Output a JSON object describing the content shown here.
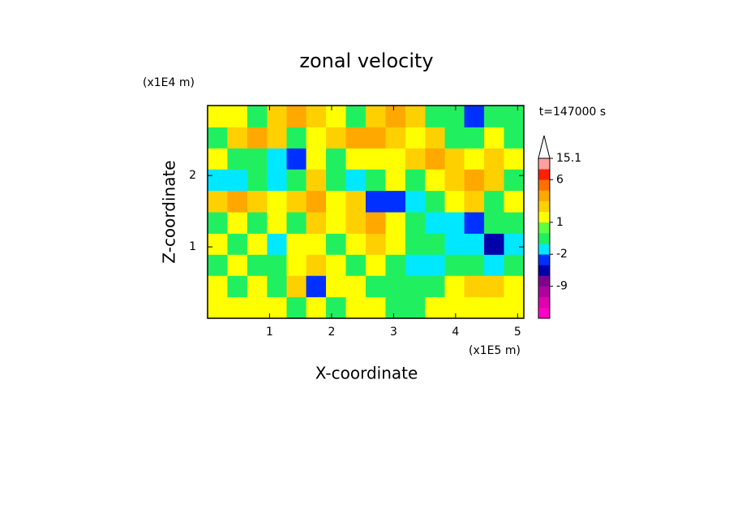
{
  "chart_data": {
    "type": "contour",
    "title": "zonal velocity",
    "x_label": "X-coordinate",
    "y_label": "Z-coordinate",
    "x_scale_label": "(x1E5 m)",
    "y_scale_label": "(x1E4 m)",
    "annotation": "t=147000 s",
    "xlim": [
      0,
      5.1
    ],
    "ylim": [
      0,
      2.98
    ],
    "xticks": [
      1,
      2,
      3,
      4,
      5
    ],
    "yticks": [
      1,
      2
    ],
    "x": [
      0.16,
      0.48,
      0.8,
      1.12,
      1.43,
      1.75,
      2.07,
      2.39,
      2.71,
      3.03,
      3.35,
      3.67,
      3.98,
      4.3,
      4.62,
      4.94
    ],
    "y": [
      0.15,
      0.45,
      0.75,
      1.04,
      1.34,
      1.64,
      1.94,
      2.24,
      2.53,
      2.83
    ],
    "values": [
      [
        1.5,
        1.5,
        1.5,
        1.5,
        -0.5,
        1.5,
        -0.5,
        1.5,
        1.5,
        -0.5,
        -0.5,
        1.5,
        1.5,
        1.5,
        1.5,
        1.5
      ],
      [
        1.5,
        -0.5,
        1.5,
        -0.5,
        2.5,
        -3,
        1.5,
        1.5,
        -0.5,
        -0.5,
        -0.5,
        -0.5,
        1.5,
        2.5,
        2.5,
        1.5
      ],
      [
        -0.5,
        1.5,
        -0.5,
        -0.5,
        1.5,
        2.5,
        1.5,
        -0.5,
        1.5,
        -0.5,
        -1.5,
        -1.5,
        -0.5,
        -0.5,
        -1.5,
        -0.5
      ],
      [
        1.5,
        -0.5,
        1.5,
        -1.5,
        1.5,
        1.5,
        -0.5,
        1.5,
        2.5,
        1.5,
        -0.5,
        -0.5,
        -1.5,
        -1.5,
        -5,
        -1.5
      ],
      [
        -0.5,
        1.5,
        -0.5,
        1.5,
        -0.5,
        2.5,
        1.5,
        2.5,
        3.5,
        1.5,
        -0.5,
        -1.5,
        -1.5,
        -3,
        -0.5,
        -0.5
      ],
      [
        2.5,
        3.5,
        2.5,
        1.5,
        2.5,
        3.5,
        1.5,
        2.5,
        -3,
        -3,
        -1.5,
        -0.5,
        1.5,
        2.5,
        -0.5,
        1.5
      ],
      [
        -1.5,
        -1.5,
        -0.5,
        -1.5,
        -0.5,
        2.5,
        -0.5,
        -1.5,
        -0.5,
        1.5,
        -0.5,
        1.5,
        2.5,
        3.5,
        2.5,
        -0.5
      ],
      [
        1.5,
        -0.5,
        -0.5,
        -1.5,
        -3,
        1.5,
        -0.5,
        1.5,
        1.5,
        1.5,
        2.5,
        3.5,
        2.5,
        1.5,
        2.5,
        1.5
      ],
      [
        -0.5,
        2.5,
        3.5,
        2.5,
        -0.5,
        1.5,
        2.5,
        3.5,
        3.5,
        2.5,
        1.5,
        2.5,
        -0.5,
        -0.5,
        1.5,
        -0.5
      ],
      [
        1.5,
        1.5,
        -0.5,
        2.5,
        3.5,
        2.5,
        1.5,
        -0.5,
        2.5,
        3.5,
        2.5,
        -0.5,
        -0.5,
        -3,
        -0.5,
        -0.5
      ]
    ],
    "colorbar": {
      "levels": [
        -20,
        -16,
        -12,
        -9,
        -6,
        -4,
        -2,
        -1,
        0,
        1,
        2,
        3,
        4.5,
        6,
        10,
        15.1
      ],
      "colors": [
        "#ff00c8",
        "#e000b0",
        "#b000a0",
        "#800090",
        "#0000a8",
        "#0030ff",
        "#00e8ff",
        "#20f060",
        "#60ff40",
        "#ffff00",
        "#ffd000",
        "#ffa800",
        "#ff7000",
        "#ff2000",
        "#ffa0a0"
      ],
      "ticks": [
        -9,
        -2,
        1,
        6,
        15.1
      ]
    }
  }
}
